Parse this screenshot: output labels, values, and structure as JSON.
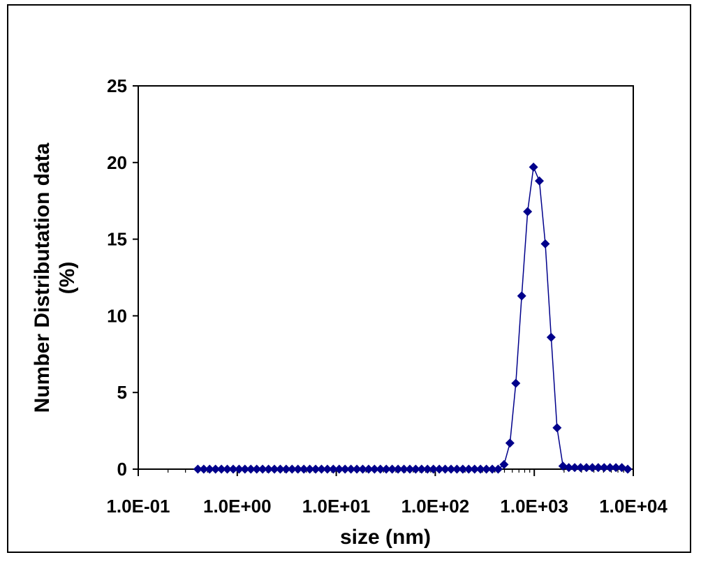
{
  "chart_data": {
    "type": "scatter",
    "title": "",
    "xlabel": "size (nm)",
    "ylabel_line1": "Number Distributation data",
    "ylabel_line2": "(%)",
    "x_scale": "log",
    "xlim": [
      0.1,
      10000
    ],
    "ylim": [
      0,
      25
    ],
    "x_tick_labels": [
      "1.0E-01",
      "1.0E+00",
      "1.0E+01",
      "1.0E+02",
      "1.0E+03",
      "1.0E+04"
    ],
    "x_tick_values": [
      0.1,
      1,
      10,
      100,
      1000,
      10000
    ],
    "y_tick_values": [
      0,
      5,
      10,
      15,
      20,
      25
    ],
    "grid": false,
    "legend": "none",
    "series_color": "#00008B",
    "marker": "diamond",
    "series": [
      {
        "x": [
          0.4,
          0.459,
          0.526,
          0.603,
          0.692,
          0.793,
          0.91,
          1.043,
          1.196,
          1.372,
          1.573,
          1.804,
          2.069,
          2.373,
          2.721,
          3.12,
          3.578,
          4.104,
          4.706,
          5.397,
          6.189,
          7.097,
          8.139,
          9.333,
          10.703,
          12.274,
          14.075,
          16.141,
          18.51,
          21.226,
          24.342,
          27.914,
          32.011,
          36.709,
          42.096,
          48.274,
          55.359,
          63.484,
          72.801,
          83.485,
          95.737,
          109.788,
          125.9,
          144.378,
          165.567,
          189.866,
          217.731,
          249.685,
          286.329,
          328.351,
          376.541,
          431.803,
          495.174,
          567.847,
          651.187,
          746.757,
          856.353,
          982.033,
          1126.16,
          1291.44,
          1480.97,
          1698.32,
          1947.57,
          2233.4,
          2561.18,
          2937.06,
          3368.12,
          3862.43,
          4429.3,
          5079.35,
          5824.79,
          6679.64,
          7659.96,
          8784.15
        ],
        "y": [
          0,
          0,
          0,
          0,
          0,
          0,
          0,
          0,
          0,
          0,
          0,
          0,
          0,
          0,
          0,
          0,
          0,
          0,
          0,
          0,
          0,
          0,
          0,
          0,
          0,
          0,
          0,
          0,
          0,
          0,
          0,
          0,
          0,
          0,
          0,
          0,
          0,
          0,
          0,
          0,
          0,
          0,
          0,
          0,
          0,
          0,
          0,
          0,
          0,
          0,
          0,
          0,
          0.3,
          1.7,
          5.6,
          11.3,
          16.8,
          19.7,
          18.8,
          14.7,
          8.6,
          2.7,
          0.2,
          0.1,
          0.1,
          0.1,
          0.1,
          0.1,
          0.1,
          0.1,
          0.1,
          0.1,
          0.1,
          0
        ]
      }
    ]
  }
}
